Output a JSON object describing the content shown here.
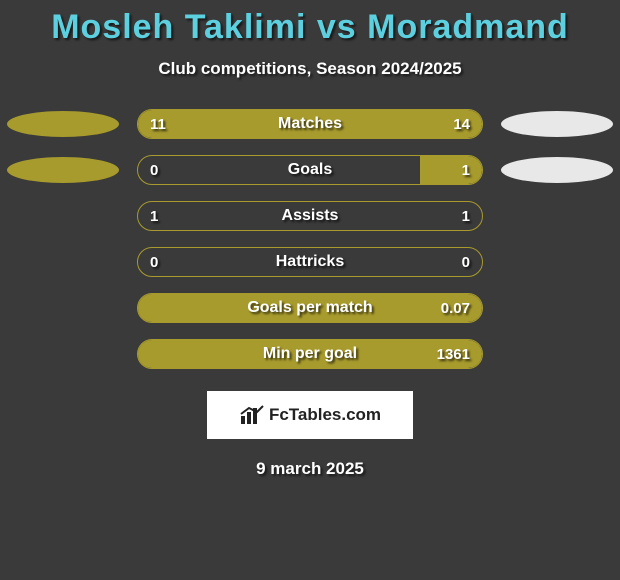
{
  "colors": {
    "background": "#3a3a3a",
    "player1": "#a89b2d",
    "player2": "#e8e8e8",
    "title_color": "#5dd0e0",
    "text": "#ffffff",
    "logo_bg": "#ffffff",
    "logo_text": "#222222"
  },
  "title": "Mosleh Taklimi vs Moradmand",
  "subtitle": "Club competitions, Season 2024/2025",
  "date": "9 march 2025",
  "logo": "FcTables.com",
  "rows": [
    {
      "label": "Matches",
      "left_val": "11",
      "right_val": "14",
      "left_fill_pct": 44,
      "right_fill_pct": 56,
      "show_ovals": true
    },
    {
      "label": "Goals",
      "left_val": "0",
      "right_val": "1",
      "left_fill_pct": 0,
      "right_fill_pct": 18,
      "show_ovals": true
    },
    {
      "label": "Assists",
      "left_val": "1",
      "right_val": "1",
      "left_fill_pct": 0,
      "right_fill_pct": 0,
      "show_ovals": false
    },
    {
      "label": "Hattricks",
      "left_val": "0",
      "right_val": "0",
      "left_fill_pct": 0,
      "right_fill_pct": 0,
      "show_ovals": false
    },
    {
      "label": "Goals per match",
      "left_val": "",
      "right_val": "0.07",
      "left_fill_pct": 0,
      "right_fill_pct": 100,
      "show_ovals": false
    },
    {
      "label": "Min per goal",
      "left_val": "",
      "right_val": "1361",
      "left_fill_pct": 0,
      "right_fill_pct": 100,
      "show_ovals": false
    }
  ]
}
